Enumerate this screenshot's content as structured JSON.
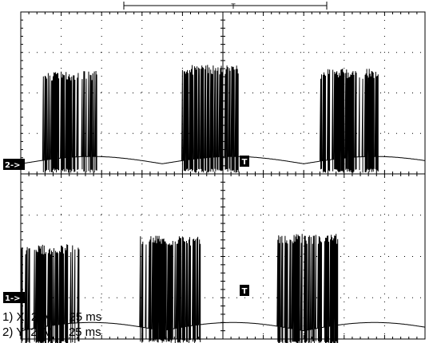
{
  "colors": {
    "background": "#ffffff",
    "trace": "#000000",
    "grid": "#000000",
    "marker_bg": "#000000",
    "marker_fg": "#ffffff"
  },
  "trigger_bar": {
    "label": "T"
  },
  "channels": [
    {
      "marker": "2->",
      "legend": "2) Y  2  V     25 ms",
      "channel": "Y",
      "volts_per_div": "2 V",
      "time_per_div": "25 ms"
    },
    {
      "marker": "1->",
      "legend": "1) X  2  V     25 ms",
      "channel": "X",
      "volts_per_div": "2 V",
      "time_per_div": "25 ms"
    }
  ],
  "chart_data": [
    {
      "type": "line",
      "channel": "2",
      "x_divisions": 10,
      "y_divisions": 4,
      "grid": true,
      "trigger_marker": "T",
      "baseline_div": 0.25,
      "arch_height_div": 0.18,
      "arch_period_div": 3.5,
      "bursts": [
        {
          "start_div": 0.55,
          "end_div": 1.9,
          "top_div": 2.55,
          "bottom_div": 0.03
        },
        {
          "start_div": 4.0,
          "end_div": 5.4,
          "top_div": 2.7,
          "bottom_div": 0.03
        },
        {
          "start_div": 7.4,
          "end_div": 8.85,
          "top_div": 2.6,
          "bottom_div": 0.03
        }
      ]
    },
    {
      "type": "line",
      "channel": "1",
      "x_divisions": 10,
      "y_divisions": 4,
      "grid": true,
      "trigger_marker": "T",
      "baseline_div": 0.2,
      "arch_height_div": 0.2,
      "arch_period_div": 3.5,
      "bursts": [
        {
          "start_div": 0.0,
          "end_div": 1.45,
          "top_div": 2.3,
          "bottom_div": -0.15
        },
        {
          "start_div": 2.95,
          "end_div": 4.45,
          "top_div": 2.5,
          "bottom_div": -0.1
        },
        {
          "start_div": 6.35,
          "end_div": 7.85,
          "top_div": 2.55,
          "bottom_div": -0.15
        }
      ]
    }
  ]
}
